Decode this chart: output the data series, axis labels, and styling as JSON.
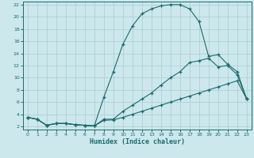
{
  "xlabel": "Humidex (Indice chaleur)",
  "bg_color": "#cce8ec",
  "line_color": "#1a6b6b",
  "grid_color": "#aaccd0",
  "xlim": [
    -0.5,
    23.5
  ],
  "ylim": [
    1.5,
    22.5
  ],
  "xticks": [
    0,
    1,
    2,
    3,
    4,
    5,
    6,
    7,
    8,
    9,
    10,
    11,
    12,
    13,
    14,
    15,
    16,
    17,
    18,
    19,
    20,
    21,
    22,
    23
  ],
  "yticks": [
    2,
    4,
    6,
    8,
    10,
    12,
    14,
    16,
    18,
    20,
    22
  ],
  "line1_x": [
    0,
    1,
    2,
    3,
    4,
    5,
    6,
    7,
    8,
    9,
    10,
    11,
    12,
    13,
    14,
    15,
    16,
    17,
    18,
    19,
    20,
    21,
    22,
    23
  ],
  "line1_y": [
    3.5,
    3.2,
    2.2,
    2.5,
    2.5,
    2.3,
    2.2,
    2.1,
    3.0,
    3.1,
    3.5,
    4.0,
    4.5,
    5.0,
    5.5,
    6.0,
    6.5,
    7.0,
    7.5,
    8.0,
    8.5,
    9.0,
    9.5,
    6.5
  ],
  "line2_x": [
    0,
    1,
    2,
    3,
    4,
    5,
    6,
    7,
    8,
    9,
    10,
    11,
    12,
    13,
    14,
    15,
    16,
    17,
    18,
    19,
    20,
    21,
    22,
    23
  ],
  "line2_y": [
    3.5,
    3.2,
    2.2,
    2.5,
    2.5,
    2.3,
    2.2,
    2.1,
    3.2,
    3.2,
    4.5,
    5.5,
    6.5,
    7.5,
    8.8,
    10.0,
    11.0,
    12.5,
    12.8,
    13.2,
    11.8,
    12.0,
    10.5,
    6.5
  ],
  "line3_x": [
    0,
    1,
    2,
    3,
    4,
    5,
    6,
    7,
    8,
    9,
    10,
    11,
    12,
    13,
    14,
    15,
    16,
    17,
    18,
    19,
    20,
    21,
    22,
    23
  ],
  "line3_y": [
    3.5,
    3.2,
    2.2,
    2.5,
    2.5,
    2.3,
    2.2,
    2.1,
    6.8,
    11.0,
    15.5,
    18.5,
    20.5,
    21.3,
    21.8,
    22.0,
    22.0,
    21.3,
    19.2,
    13.5,
    13.8,
    12.2,
    11.0,
    6.5
  ]
}
